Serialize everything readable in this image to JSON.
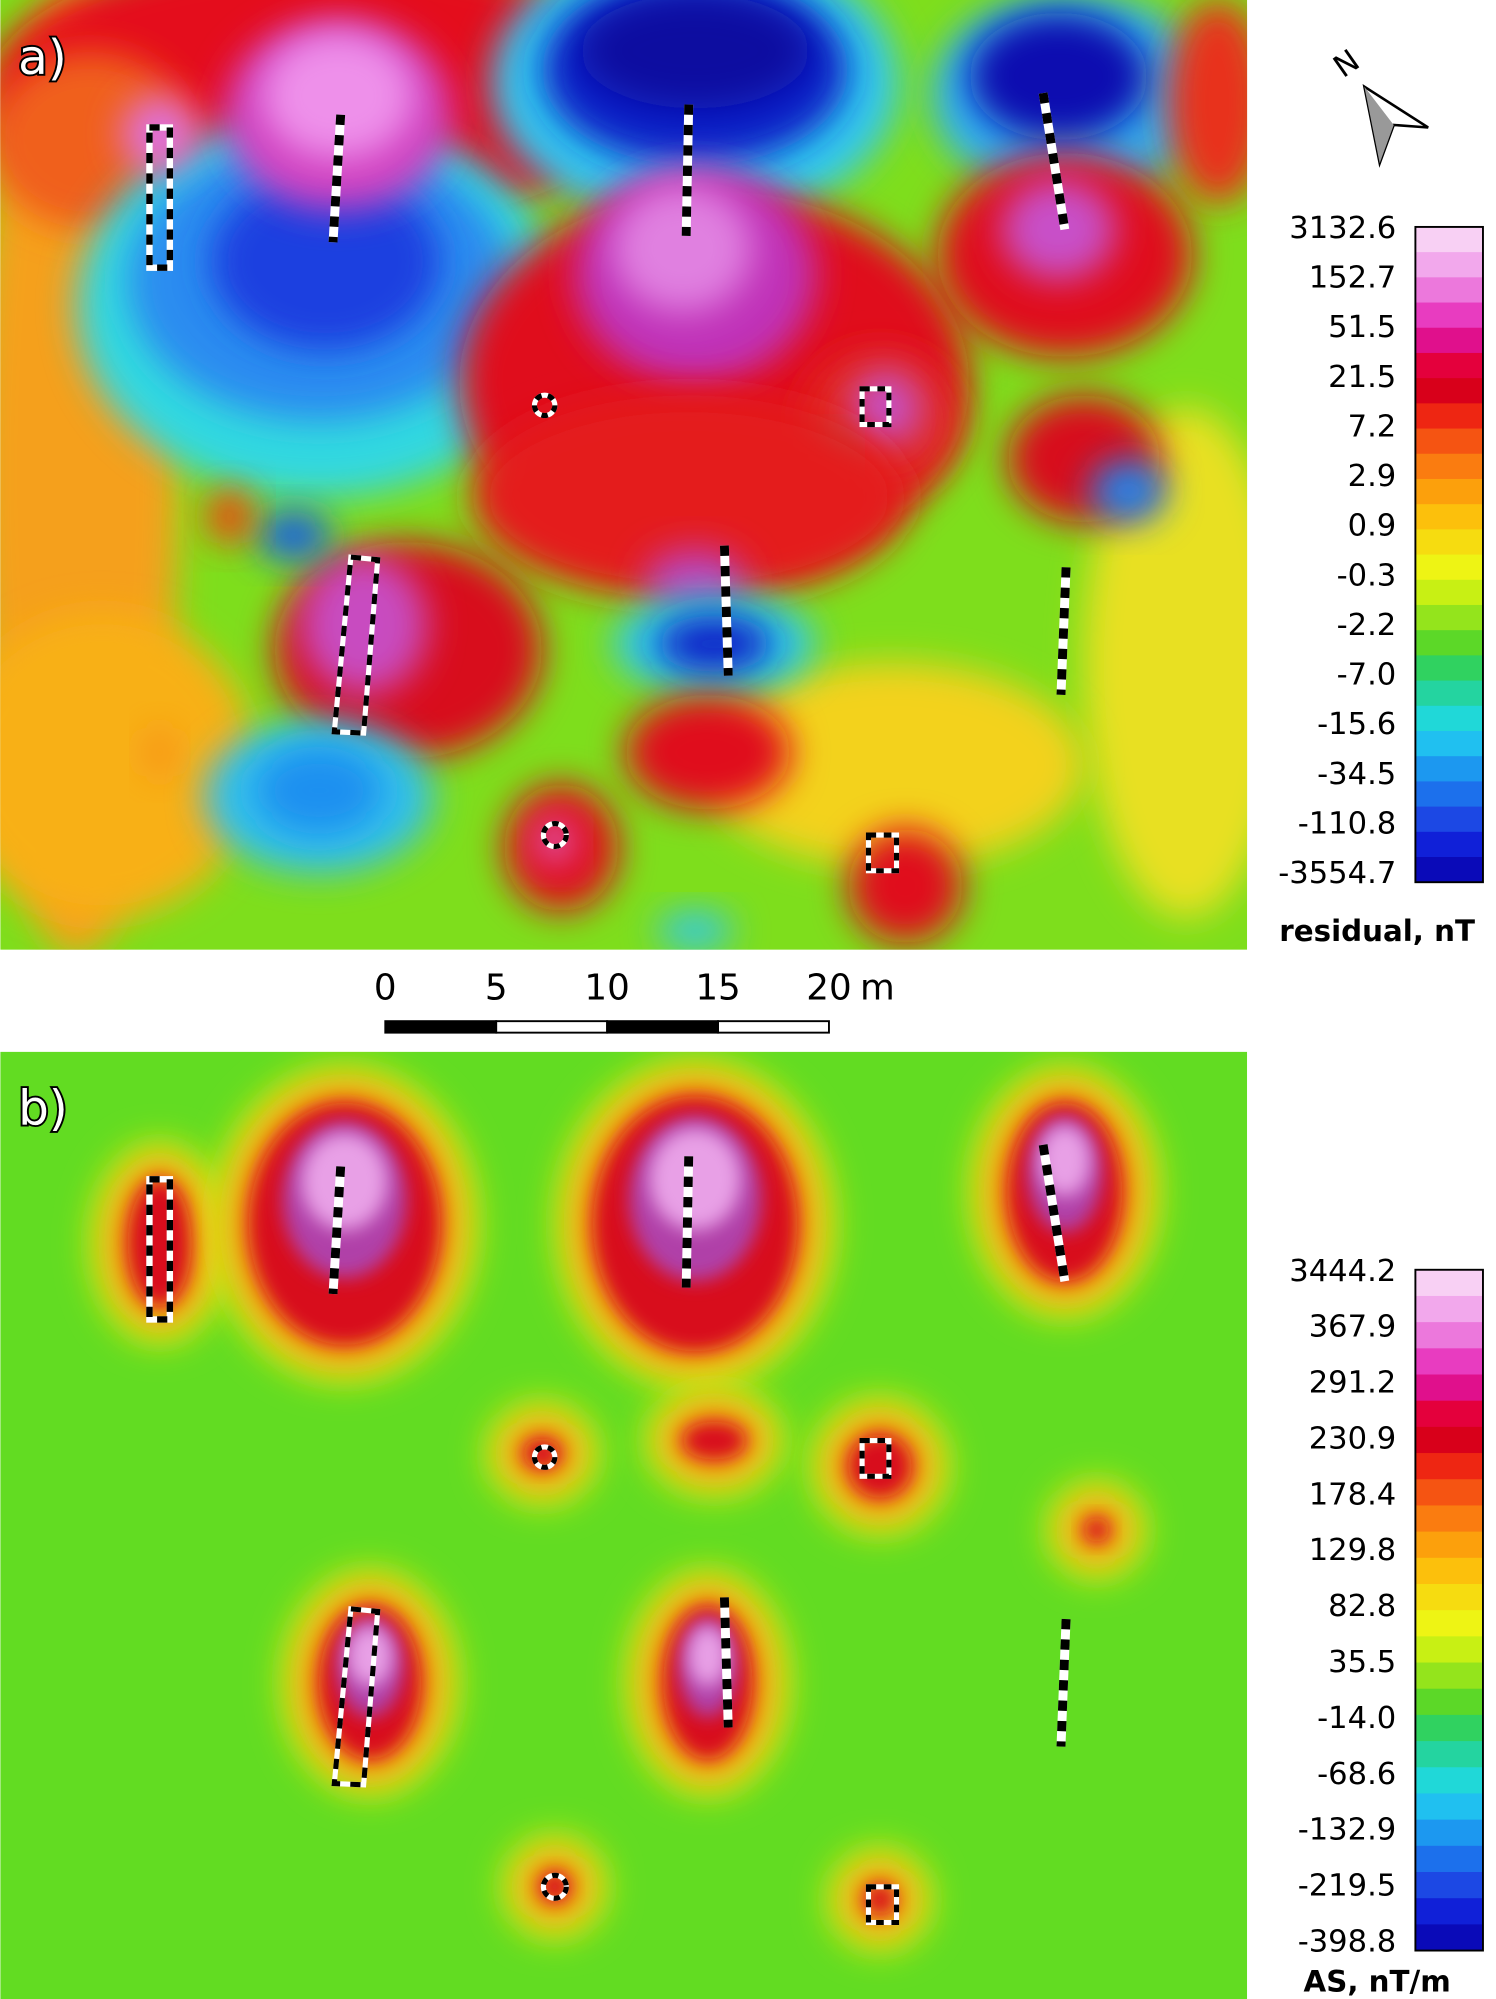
{
  "panels": [
    {
      "label": "a)",
      "legend": {
        "title": "residual, nT",
        "levels": [
          "3132.6",
          "152.7",
          "51.5",
          "21.5",
          "7.2",
          "2.9",
          "0.9",
          "-0.3",
          "-2.2",
          "-7.0",
          "-15.6",
          "-34.5",
          "-110.8",
          "-3554.7"
        ]
      }
    },
    {
      "label": "b)",
      "legend": {
        "title": "AS, nT/m",
        "levels": [
          "3444.2",
          "367.9",
          "291.2",
          "230.9",
          "178.4",
          "129.8",
          "82.8",
          "35.5",
          "-14.0",
          "-68.6",
          "-132.9",
          "-219.5",
          "-398.8"
        ]
      }
    }
  ],
  "scale_bar": {
    "ticks": [
      "0",
      "5",
      "10",
      "15",
      "20"
    ],
    "unit": "m"
  },
  "north": "N"
}
